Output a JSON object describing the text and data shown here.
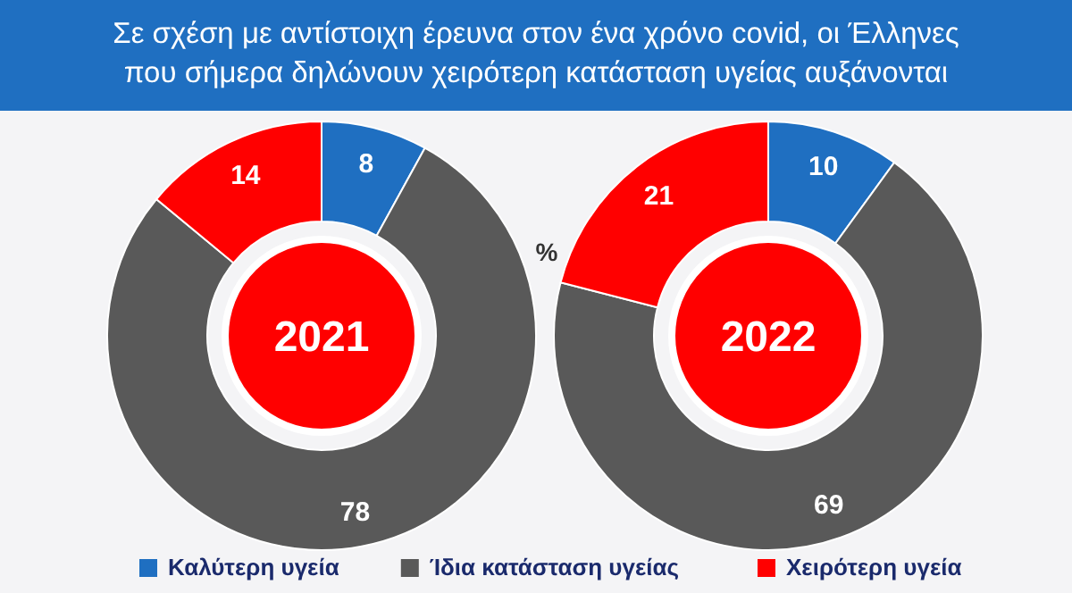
{
  "chart_data": {
    "type": "donut",
    "title": "Σε σχέση με αντίστοιχη έρευνα στον ένα χρόνο covid, οι Έλληνες\nπου σήμερα δηλώνουν χειρότερη κατάσταση υγείας αυξάνονται",
    "annotations": [
      "%"
    ],
    "categories": [
      "Καλύτερη υγεία",
      "Ίδια κατάσταση υγείας",
      "Χειρότερη υγεία"
    ],
    "colors": [
      "#1f6fc1",
      "#595959",
      "#ff0000"
    ],
    "data_labels": true,
    "legend": "bottom",
    "series": [
      {
        "name": "2021",
        "values": [
          8,
          78,
          14
        ]
      },
      {
        "name": "2022",
        "values": [
          10,
          69,
          21
        ]
      }
    ]
  }
}
